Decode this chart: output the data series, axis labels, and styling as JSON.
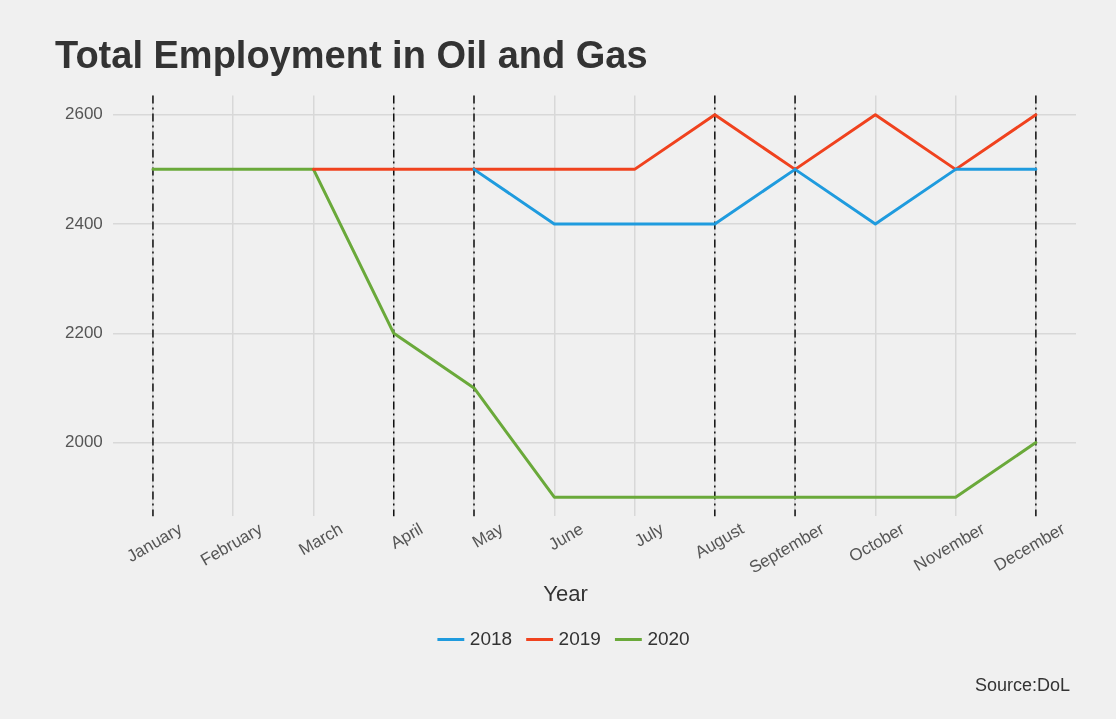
{
  "chart_data": {
    "type": "line",
    "title": "Total Employment in Oil and Gas",
    "categories": [
      "January",
      "February",
      "March",
      "April",
      "May",
      "June",
      "July",
      "August",
      "September",
      "October",
      "November",
      "December"
    ],
    "series": [
      {
        "name": "2018",
        "color": "#1f9bde",
        "values": [
          null,
          null,
          null,
          null,
          2500,
          2400,
          2400,
          2400,
          2500,
          2400,
          2500,
          2500
        ]
      },
      {
        "name": "2019",
        "color": "#f0421e",
        "values": [
          null,
          null,
          2500,
          2500,
          2500,
          2500,
          2500,
          2600,
          2500,
          2600,
          2500,
          2600
        ]
      },
      {
        "name": "2020",
        "color": "#6aa93a",
        "values": [
          2500,
          2500,
          2500,
          2200,
          2100,
          1900,
          1900,
          1900,
          1900,
          1900,
          1900,
          2000
        ]
      }
    ],
    "ylim": [
      1865,
      2635
    ],
    "yticks": [
      2000,
      2200,
      2400,
      2600
    ],
    "grid": true,
    "legend": "bottom",
    "legend_title": "Year",
    "marker": "none",
    "line_style": "solid",
    "ref_lines": [
      {
        "axis": "x",
        "value": "January",
        "color": "#111111",
        "line_style": "dashed"
      },
      {
        "axis": "x",
        "value": "April",
        "color": "#111111",
        "line_style": "dashed"
      },
      {
        "axis": "x",
        "value": "May",
        "color": "#111111",
        "line_style": "dashed"
      },
      {
        "axis": "x",
        "value": "August",
        "color": "#111111",
        "line_style": "dashed"
      },
      {
        "axis": "x",
        "value": "September",
        "color": "#111111",
        "line_style": "dashed"
      },
      {
        "axis": "x",
        "value": "December",
        "color": "#111111",
        "line_style": "dashed"
      }
    ],
    "annotations": [
      "Source:DoL"
    ]
  }
}
